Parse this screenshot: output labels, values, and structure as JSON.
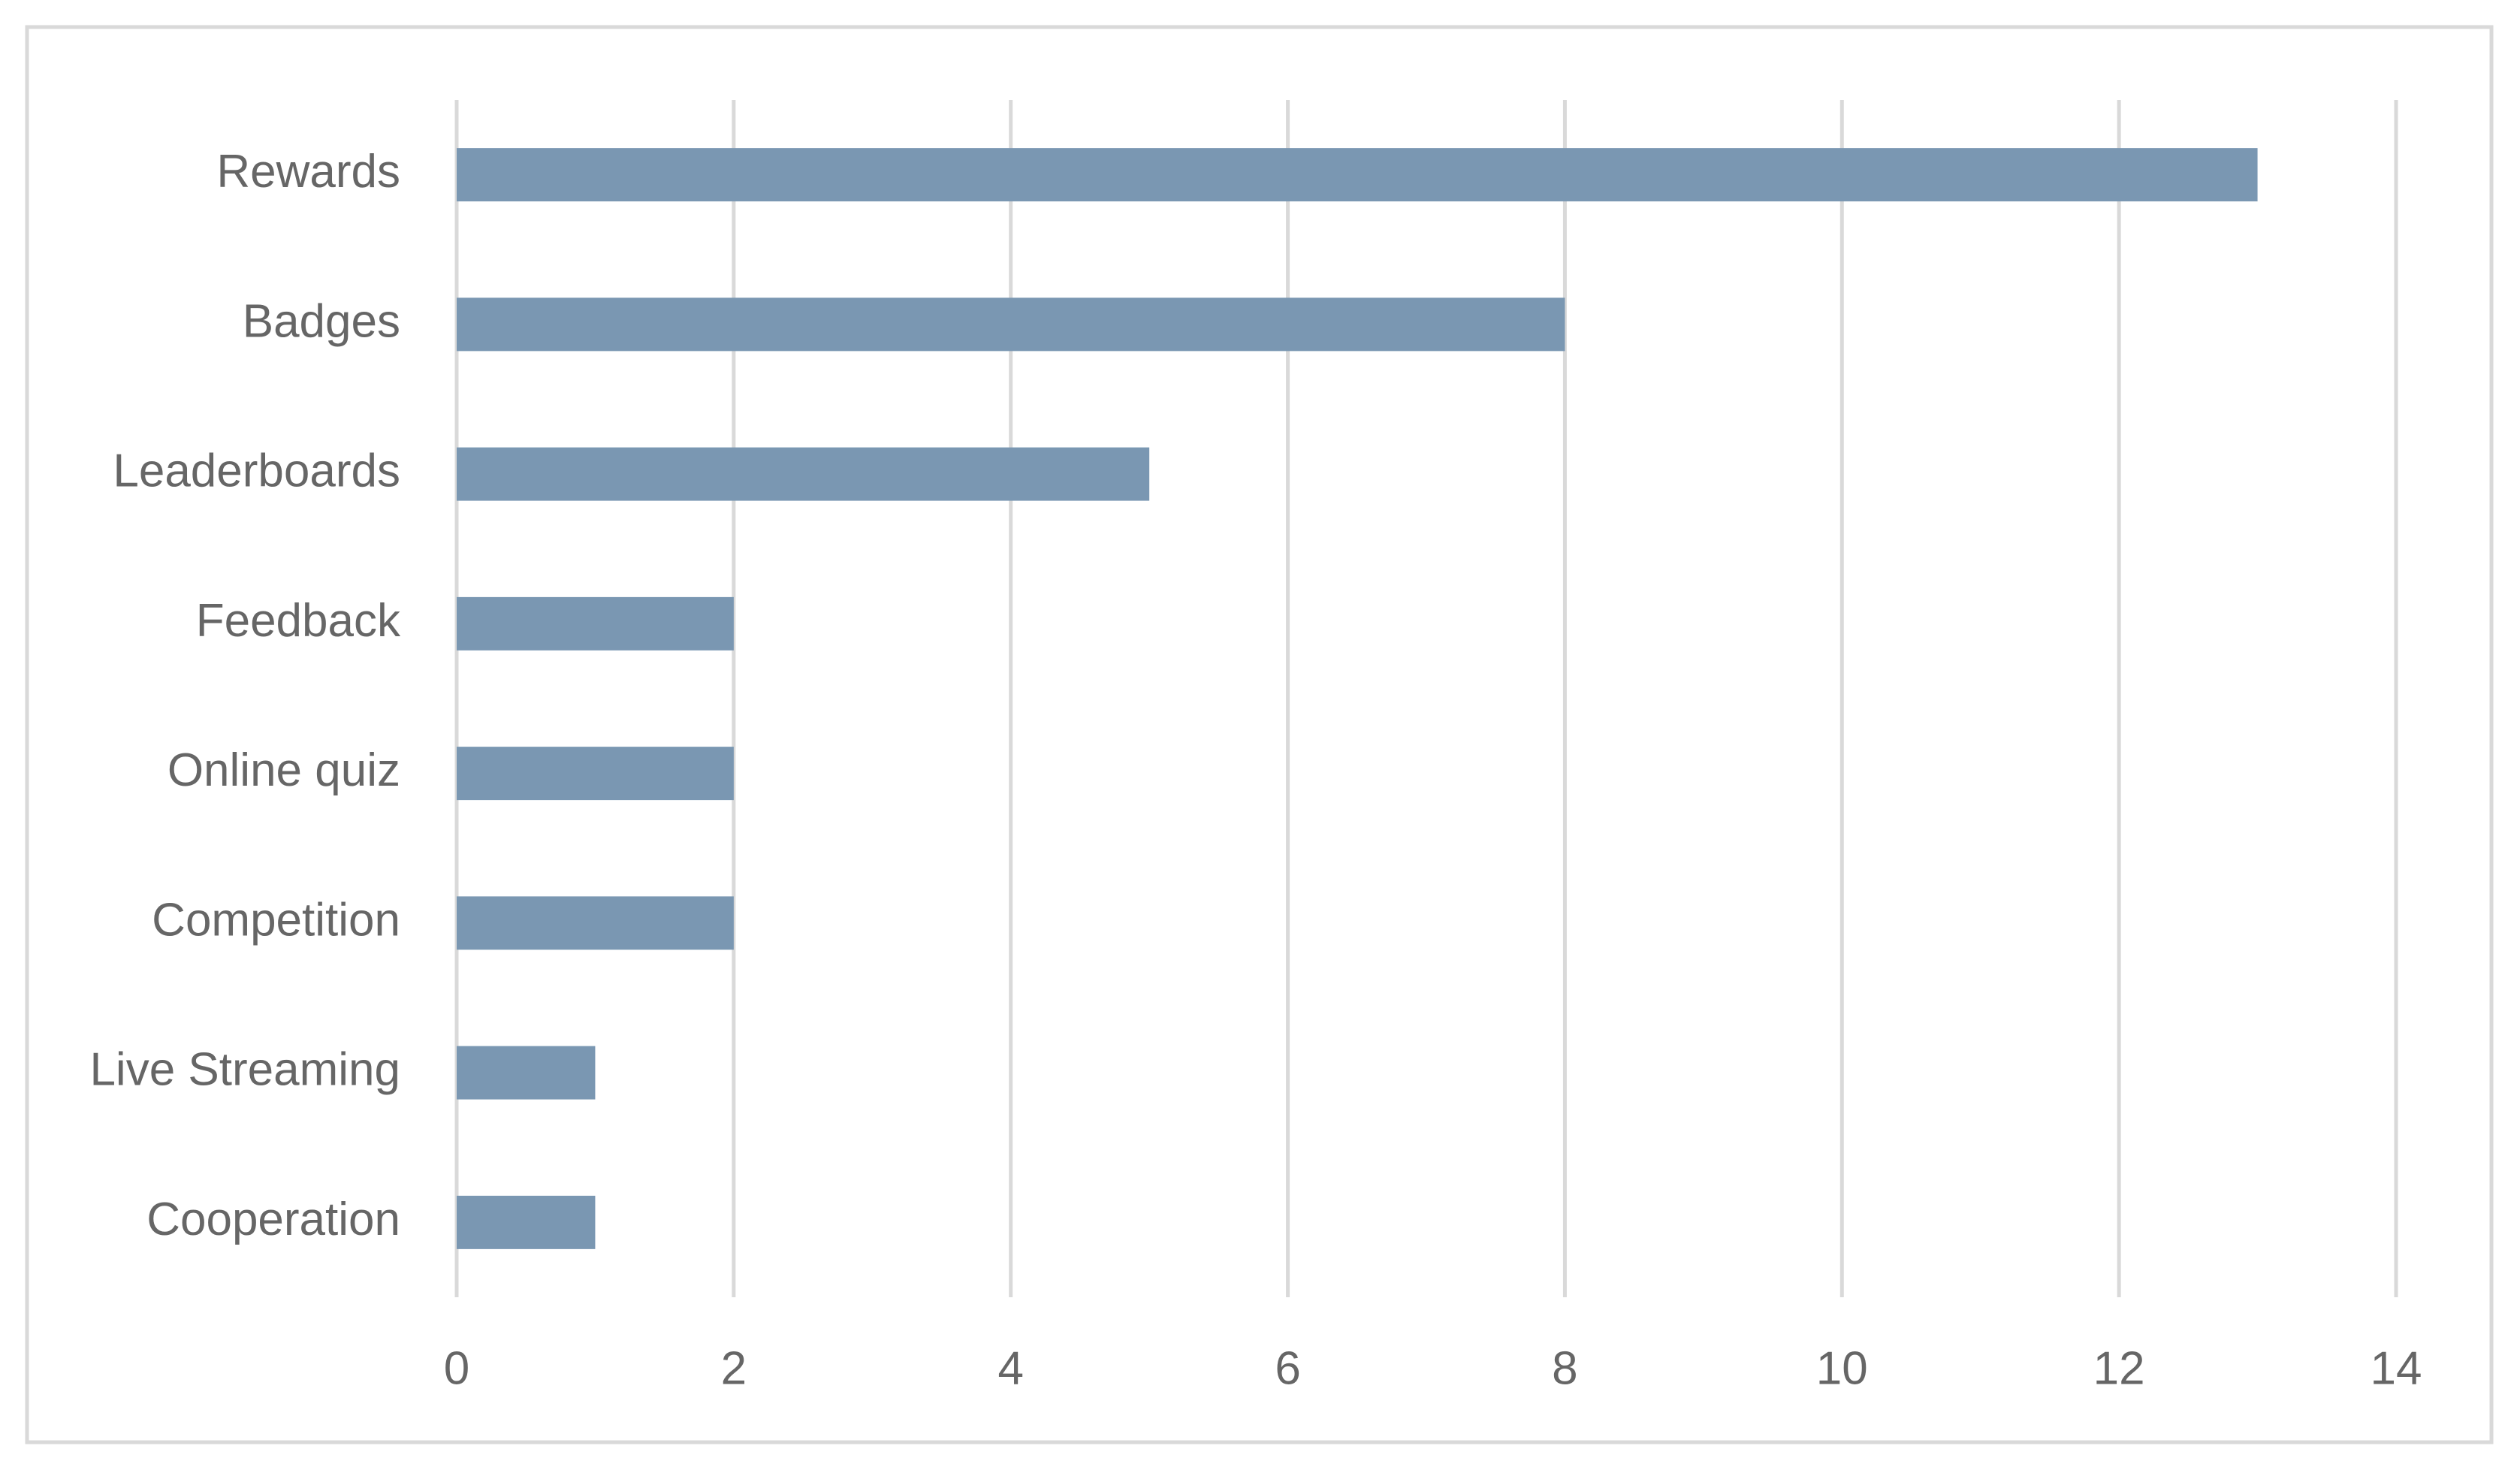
{
  "chart_data": {
    "type": "bar",
    "orientation": "horizontal",
    "categories": [
      "Rewards",
      "Badges",
      "Leaderboards",
      "Feedback",
      "Online quiz",
      "Competition",
      "Live Streaming",
      "Cooperation"
    ],
    "values": [
      13,
      8,
      5,
      2,
      2,
      2,
      1,
      1
    ],
    "color": "#7a97b2",
    "xlim": [
      0,
      14
    ],
    "xticks": [
      0,
      2,
      4,
      6,
      8,
      10,
      12,
      14
    ],
    "grid": true
  }
}
